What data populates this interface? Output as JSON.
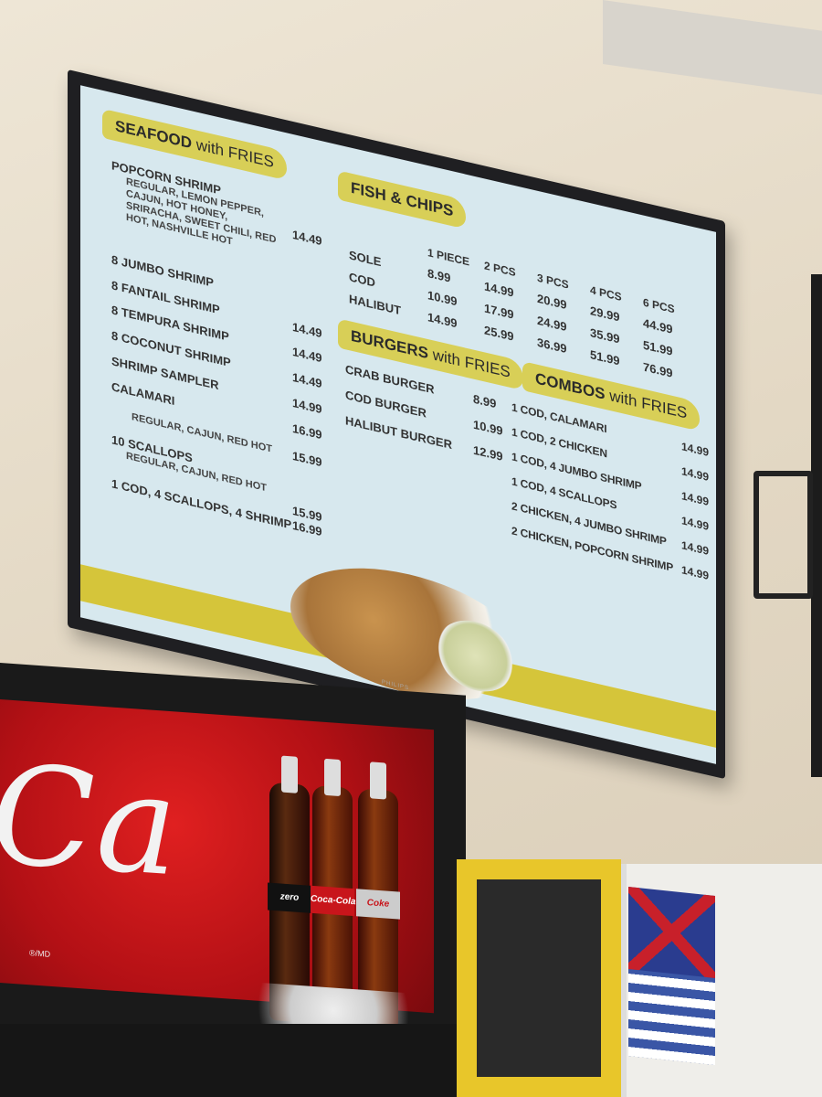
{
  "menu": {
    "seafood": {
      "title": "SEAFOOD",
      "title_suffix": "with FRIES",
      "items": [
        {
          "name": "POPCORN SHRIMP",
          "sub": "REGULAR, LEMON PEPPER, CAJUN, HOT HONEY, SRIRACHA, SWEET CHILI, RED HOT, NASHVILLE HOT",
          "price": "14.49"
        },
        {
          "name": "8 JUMBO SHRIMP",
          "price": ""
        },
        {
          "name": "8 FANTAIL SHRIMP",
          "price": "14.49"
        },
        {
          "name": "8 TEMPURA SHRIMP",
          "price": "14.49"
        },
        {
          "name": "8 COCONUT SHRIMP",
          "price": "14.49"
        },
        {
          "name": "SHRIMP SAMPLER",
          "price": "14.99"
        },
        {
          "name": "CALAMARI",
          "price": "16.99"
        },
        {
          "name": "REGULAR, CAJUN, RED HOT",
          "price": "15.99"
        },
        {
          "name": "10 SCALLOPS",
          "sub": "REGULAR, CAJUN, RED HOT",
          "price": "15.99"
        },
        {
          "name": "1 COD, 4 SCALLOPS, 4 SHRIMP",
          "price": "16.99"
        }
      ]
    },
    "fish_chips": {
      "title": "FISH & CHIPS",
      "columns": [
        "1 PIECE",
        "2 PCS",
        "3 PCS",
        "4 PCS",
        "6 PCS"
      ],
      "rows": [
        {
          "name": "SOLE",
          "prices": [
            "8.99",
            "14.99",
            "20.99",
            "29.99",
            "44.99"
          ]
        },
        {
          "name": "COD",
          "prices": [
            "10.99",
            "17.99",
            "24.99",
            "35.99",
            "51.99"
          ]
        },
        {
          "name": "HALIBUT",
          "prices": [
            "14.99",
            "25.99",
            "36.99",
            "51.99",
            "76.99"
          ]
        }
      ]
    },
    "burgers": {
      "title": "BURGERS",
      "title_suffix": "with FRIES",
      "items": [
        {
          "name": "CRAB BURGER",
          "price": "8.99"
        },
        {
          "name": "COD BURGER",
          "price": "10.99"
        },
        {
          "name": "HALIBUT BURGER",
          "price": "12.99"
        }
      ]
    },
    "combos": {
      "title": "COMBOS",
      "title_suffix": "with FRIES",
      "items": [
        {
          "name": "1 COD, CALAMARI",
          "price": "14.99"
        },
        {
          "name": "1 COD, 2 CHICKEN",
          "price": "14.99"
        },
        {
          "name": "1 COD, 4 JUMBO SHRIMP",
          "price": "14.99"
        },
        {
          "name": "1 COD, 4 SCALLOPS",
          "price": "14.99"
        },
        {
          "name": "2 CHICKEN, 4 JUMBO SHRIMP",
          "price": "14.99"
        },
        {
          "name": "2 CHICKEN, POPCORN SHRIMP",
          "price": "14.99"
        }
      ]
    },
    "brand": "PHILIPS"
  },
  "coke_sign": {
    "script": "Ca",
    "mark": "®/MD",
    "labels": [
      "zero",
      "Coca-Cola",
      "Coke"
    ]
  },
  "colors": {
    "accent_yellow": "#d8cf57",
    "panel": "#d7e8ee",
    "coke_red": "#c8151b"
  }
}
